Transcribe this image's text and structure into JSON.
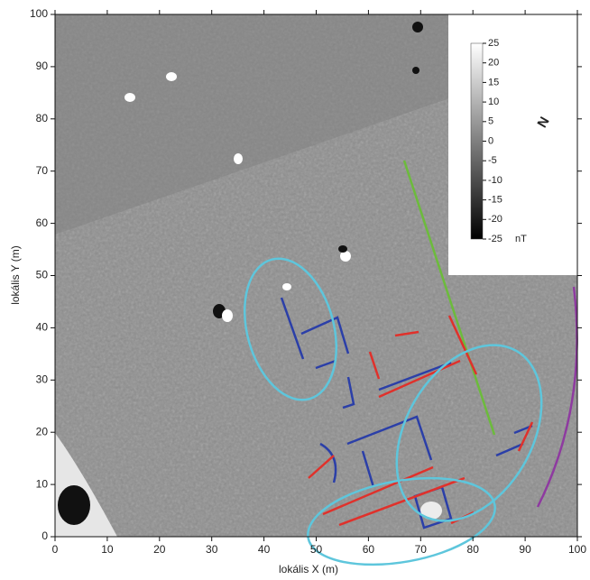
{
  "chart_data": {
    "type": "heatmap",
    "xlabel": "lokális X (m)",
    "ylabel": "lokális Y (m)",
    "xlim": [
      0,
      100
    ],
    "xticks": [
      0,
      10,
      20,
      30,
      40,
      50,
      60,
      70,
      80,
      90,
      100
    ],
    "ylim": [
      0,
      100
    ],
    "yticks": [
      0,
      10,
      20,
      30,
      40,
      50,
      60,
      70,
      80,
      90,
      100
    ],
    "colorbar": {
      "lim": [
        -25,
        25
      ],
      "ticks": [
        25,
        20,
        15,
        10,
        5,
        0,
        -5,
        -10,
        -15,
        -20,
        -25
      ],
      "unit": "nT"
    },
    "annotations": [
      "N"
    ]
  }
}
